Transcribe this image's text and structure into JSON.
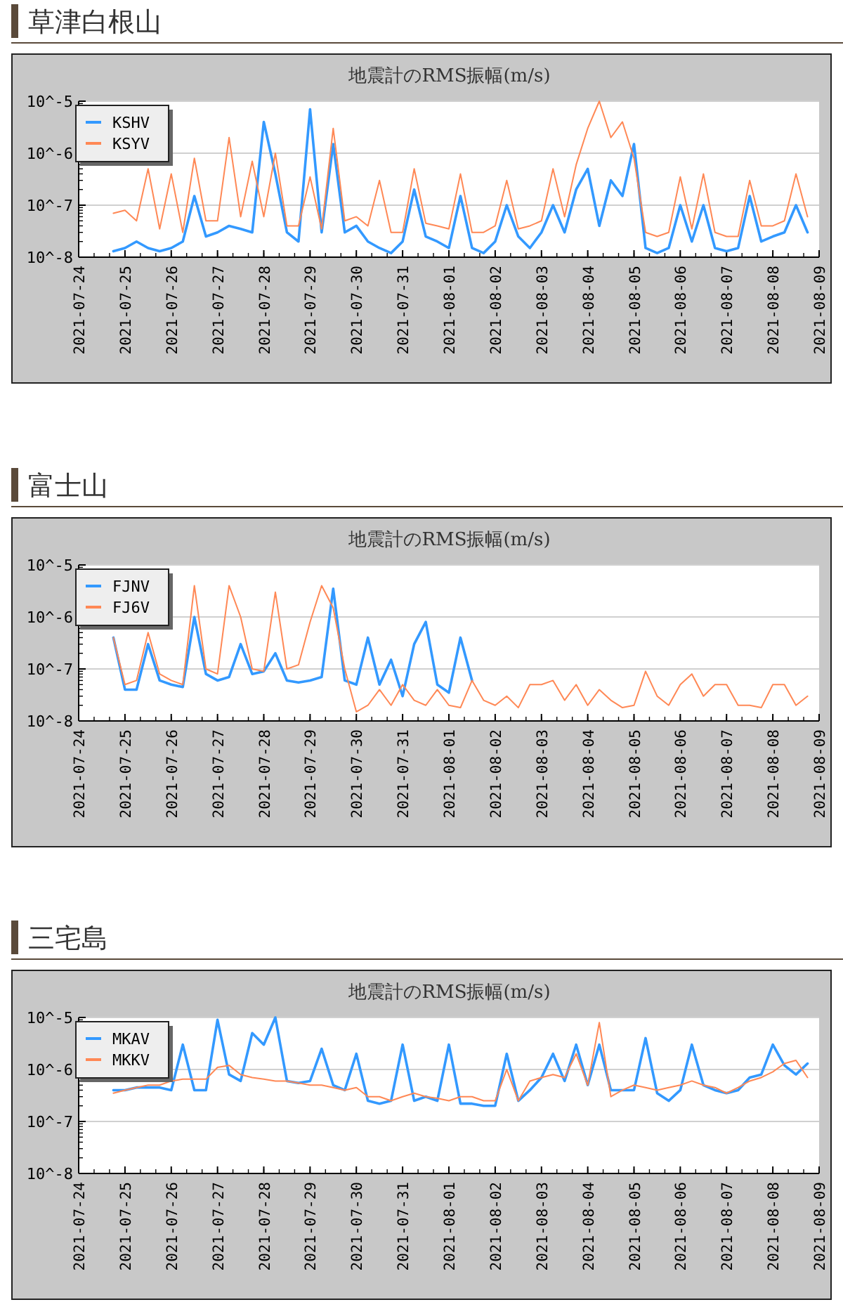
{
  "chart_data": [
    {
      "type": "line",
      "title": "草津白根山",
      "subtitle": "地震計のRMS振幅(m/s)",
      "log": "y",
      "grid": "y",
      "legend": "top left",
      "xlim": [
        "2021-07-24",
        "2021-08-09"
      ],
      "xticks": [
        "2021-07-24",
        "2021-07-25",
        "2021-07-26",
        "2021-07-27",
        "2021-07-28",
        "2021-07-29",
        "2021-07-30",
        "2021-07-31",
        "2021-08-01",
        "2021-08-02",
        "2021-08-03",
        "2021-08-04",
        "2021-08-05",
        "2021-08-06",
        "2021-08-07",
        "2021-08-08",
        "2021-08-09"
      ],
      "ylim": [
        1e-08,
        1e-05
      ],
      "yticks": [
        {
          "value": 1e-08,
          "label": "10^-8"
        },
        {
          "value": 1e-07,
          "label": "10^-7"
        },
        {
          "value": 1e-06,
          "label": "10^-6"
        },
        {
          "value": 1e-05,
          "label": "10^-5"
        }
      ],
      "x": [
        "2021-07-24T18:00",
        "2021-07-25T00:00",
        "2021-07-25T06:00",
        "2021-07-25T12:00",
        "2021-07-25T18:00",
        "2021-07-26T00:00",
        "2021-07-26T06:00",
        "2021-07-26T12:00",
        "2021-07-26T18:00",
        "2021-07-27T00:00",
        "2021-07-27T06:00",
        "2021-07-27T12:00",
        "2021-07-27T18:00",
        "2021-07-28T00:00",
        "2021-07-28T06:00",
        "2021-07-28T12:00",
        "2021-07-28T18:00",
        "2021-07-29T00:00",
        "2021-07-29T06:00",
        "2021-07-29T12:00",
        "2021-07-29T18:00",
        "2021-07-30T00:00",
        "2021-07-30T06:00",
        "2021-07-30T12:00",
        "2021-07-30T18:00",
        "2021-07-31T00:00",
        "2021-07-31T06:00",
        "2021-07-31T12:00",
        "2021-07-31T18:00",
        "2021-08-01T00:00",
        "2021-08-01T06:00",
        "2021-08-01T12:00",
        "2021-08-01T18:00",
        "2021-08-02T00:00",
        "2021-08-02T06:00",
        "2021-08-02T12:00",
        "2021-08-02T18:00",
        "2021-08-03T00:00",
        "2021-08-03T06:00",
        "2021-08-03T12:00",
        "2021-08-03T18:00",
        "2021-08-04T00:00",
        "2021-08-04T06:00",
        "2021-08-04T12:00",
        "2021-08-04T18:00",
        "2021-08-05T00:00",
        "2021-08-05T06:00",
        "2021-08-05T12:00",
        "2021-08-05T18:00",
        "2021-08-06T00:00",
        "2021-08-06T06:00",
        "2021-08-06T12:00",
        "2021-08-06T18:00",
        "2021-08-07T00:00",
        "2021-08-07T06:00",
        "2021-08-07T12:00",
        "2021-08-07T18:00",
        "2021-08-08T00:00",
        "2021-08-08T06:00",
        "2021-08-08T12:00",
        "2021-08-08T18:00"
      ],
      "series": [
        {
          "name": "KSHV",
          "color": "#3399ff",
          "values": [
            1.3e-08,
            1.5e-08,
            2e-08,
            1.5e-08,
            1.3e-08,
            1.5e-08,
            2e-08,
            1.5e-07,
            2.5e-08,
            3e-08,
            4e-08,
            3.5e-08,
            3e-08,
            4e-06,
            4e-07,
            3e-08,
            2e-08,
            7e-06,
            3e-08,
            1.5e-06,
            3e-08,
            4e-08,
            2e-08,
            1.5e-08,
            1.2e-08,
            2e-08,
            2e-07,
            2.5e-08,
            2e-08,
            1.5e-08,
            1.5e-07,
            1.5e-08,
            1.2e-08,
            2e-08,
            1e-07,
            2.5e-08,
            1.5e-08,
            3e-08,
            1e-07,
            3e-08,
            2e-07,
            5e-07,
            4e-08,
            3e-07,
            1.5e-07,
            1.5e-06,
            1.5e-08,
            1.2e-08,
            1.5e-08,
            1e-07,
            2e-08,
            1e-07,
            1.5e-08,
            1.3e-08,
            1.5e-08,
            1.5e-07,
            2e-08,
            2.5e-08,
            3e-08,
            1e-07,
            3e-08
          ]
        },
        {
          "name": "KSYV",
          "color": "#ff8855",
          "values": [
            7e-08,
            8e-08,
            5e-08,
            5e-07,
            3.5e-08,
            4e-07,
            3e-08,
            8e-07,
            5e-08,
            5e-08,
            2e-06,
            6e-08,
            7e-07,
            6e-08,
            1e-06,
            4e-08,
            4e-08,
            3.5e-07,
            3.5e-08,
            3e-06,
            5e-08,
            6e-08,
            4e-08,
            3e-07,
            3e-08,
            3e-08,
            5e-07,
            4.5e-08,
            4e-08,
            3.5e-08,
            4e-07,
            3e-08,
            3e-08,
            4e-08,
            3e-07,
            3.5e-08,
            4e-08,
            5e-08,
            5e-07,
            6e-08,
            6e-07,
            3e-06,
            1e-05,
            2e-06,
            4e-06,
            8e-07,
            3e-08,
            2.5e-08,
            3e-08,
            3.5e-07,
            3.5e-08,
            4e-07,
            3e-08,
            2.5e-08,
            2.5e-08,
            3e-07,
            4e-08,
            4e-08,
            5e-08,
            4e-07,
            6e-08
          ]
        }
      ]
    },
    {
      "type": "line",
      "title": "富士山",
      "subtitle": "地震計のRMS振幅(m/s)",
      "log": "y",
      "grid": "y",
      "legend": "top left",
      "xlim": [
        "2021-07-24",
        "2021-08-09"
      ],
      "xticks": [
        "2021-07-24",
        "2021-07-25",
        "2021-07-26",
        "2021-07-27",
        "2021-07-28",
        "2021-07-29",
        "2021-07-30",
        "2021-07-31",
        "2021-08-01",
        "2021-08-02",
        "2021-08-03",
        "2021-08-04",
        "2021-08-05",
        "2021-08-06",
        "2021-08-07",
        "2021-08-08",
        "2021-08-09"
      ],
      "ylim": [
        1e-08,
        1e-05
      ],
      "yticks": [
        {
          "value": 1e-08,
          "label": "10^-8"
        },
        {
          "value": 1e-07,
          "label": "10^-7"
        },
        {
          "value": 1e-06,
          "label": "10^-6"
        },
        {
          "value": 1e-05,
          "label": "10^-5"
        }
      ],
      "x": [
        "2021-07-24T18:00",
        "2021-07-25T00:00",
        "2021-07-25T06:00",
        "2021-07-25T12:00",
        "2021-07-25T18:00",
        "2021-07-26T00:00",
        "2021-07-26T06:00",
        "2021-07-26T12:00",
        "2021-07-26T18:00",
        "2021-07-27T00:00",
        "2021-07-27T06:00",
        "2021-07-27T12:00",
        "2021-07-27T18:00",
        "2021-07-28T00:00",
        "2021-07-28T06:00",
        "2021-07-28T12:00",
        "2021-07-28T18:00",
        "2021-07-29T00:00",
        "2021-07-29T06:00",
        "2021-07-29T12:00",
        "2021-07-29T18:00",
        "2021-07-30T00:00",
        "2021-07-30T06:00",
        "2021-07-30T12:00",
        "2021-07-30T18:00",
        "2021-07-31T00:00",
        "2021-07-31T06:00",
        "2021-07-31T12:00",
        "2021-07-31T18:00",
        "2021-08-01T00:00",
        "2021-08-01T06:00",
        "2021-08-01T12:00",
        "2021-08-01T18:00",
        "2021-08-02T00:00",
        "2021-08-02T06:00",
        "2021-08-02T12:00",
        "2021-08-02T18:00",
        "2021-08-03T00:00",
        "2021-08-03T06:00",
        "2021-08-03T12:00",
        "2021-08-03T18:00",
        "2021-08-04T00:00",
        "2021-08-04T06:00",
        "2021-08-04T12:00",
        "2021-08-04T18:00",
        "2021-08-05T00:00",
        "2021-08-05T06:00",
        "2021-08-05T12:00",
        "2021-08-05T18:00",
        "2021-08-06T00:00",
        "2021-08-06T06:00",
        "2021-08-06T12:00",
        "2021-08-06T18:00",
        "2021-08-07T00:00",
        "2021-08-07T06:00",
        "2021-08-07T12:00",
        "2021-08-07T18:00",
        "2021-08-08T00:00",
        "2021-08-08T06:00",
        "2021-08-08T12:00",
        "2021-08-08T18:00"
      ],
      "series": [
        {
          "name": "FJNV",
          "color": "#3399ff",
          "values": [
            4e-07,
            4e-08,
            4e-08,
            3e-07,
            6e-08,
            5e-08,
            4.5e-08,
            1e-06,
            8e-08,
            6e-08,
            7e-08,
            3e-07,
            8e-08,
            9e-08,
            2e-07,
            6e-08,
            5.5e-08,
            6e-08,
            7e-08,
            3.5e-06,
            6e-08,
            5e-08,
            4e-07,
            5e-08,
            1.5e-07,
            3e-08,
            3e-07,
            8e-07,
            5e-08,
            3.5e-08,
            4e-07,
            6e-08,
            null,
            null,
            null,
            null,
            null,
            null,
            null,
            null,
            null,
            null,
            null,
            null,
            null,
            null,
            null,
            null,
            null,
            null,
            null,
            null,
            null,
            null,
            null,
            null,
            null,
            null,
            null,
            null,
            null
          ]
        },
        {
          "name": "FJ6V",
          "color": "#ff8855",
          "values": [
            4e-07,
            5e-08,
            6e-08,
            5e-07,
            8e-08,
            6e-08,
            5e-08,
            4e-06,
            1e-07,
            8e-08,
            4e-06,
            1e-06,
            1e-07,
            9e-08,
            3e-06,
            1e-07,
            1.2e-07,
            8e-07,
            4e-06,
            1.5e-06,
            1e-07,
            1.5e-08,
            2e-08,
            4e-08,
            2e-08,
            5e-08,
            2.5e-08,
            2e-08,
            4e-08,
            2e-08,
            1.8e-08,
            6e-08,
            2.5e-08,
            2e-08,
            3e-08,
            1.8e-08,
            5e-08,
            5e-08,
            6e-08,
            2.5e-08,
            5e-08,
            2e-08,
            4e-08,
            2.5e-08,
            1.8e-08,
            2e-08,
            9e-08,
            3e-08,
            2e-08,
            5e-08,
            8e-08,
            3e-08,
            5e-08,
            5e-08,
            2e-08,
            2e-08,
            1.8e-08,
            5e-08,
            5e-08,
            2e-08,
            3e-08
          ]
        }
      ]
    },
    {
      "type": "line",
      "title": "三宅島",
      "subtitle": "地震計のRMS振幅(m/s)",
      "log": "y",
      "grid": "y",
      "legend": "top left",
      "xlim": [
        "2021-07-24",
        "2021-08-09"
      ],
      "xticks": [
        "2021-07-24",
        "2021-07-25",
        "2021-07-26",
        "2021-07-27",
        "2021-07-28",
        "2021-07-29",
        "2021-07-30",
        "2021-07-31",
        "2021-08-01",
        "2021-08-02",
        "2021-08-03",
        "2021-08-04",
        "2021-08-05",
        "2021-08-06",
        "2021-08-07",
        "2021-08-08",
        "2021-08-09"
      ],
      "ylim": [
        1e-08,
        1e-05
      ],
      "yticks": [
        {
          "value": 1e-08,
          "label": "10^-8"
        },
        {
          "value": 1e-07,
          "label": "10^-7"
        },
        {
          "value": 1e-06,
          "label": "10^-6"
        },
        {
          "value": 1e-05,
          "label": "10^-5"
        }
      ],
      "x": [
        "2021-07-24T18:00",
        "2021-07-25T00:00",
        "2021-07-25T06:00",
        "2021-07-25T12:00",
        "2021-07-25T18:00",
        "2021-07-26T00:00",
        "2021-07-26T06:00",
        "2021-07-26T12:00",
        "2021-07-26T18:00",
        "2021-07-27T00:00",
        "2021-07-27T06:00",
        "2021-07-27T12:00",
        "2021-07-27T18:00",
        "2021-07-28T00:00",
        "2021-07-28T06:00",
        "2021-07-28T12:00",
        "2021-07-28T18:00",
        "2021-07-29T00:00",
        "2021-07-29T06:00",
        "2021-07-29T12:00",
        "2021-07-29T18:00",
        "2021-07-30T00:00",
        "2021-07-30T06:00",
        "2021-07-30T12:00",
        "2021-07-30T18:00",
        "2021-07-31T00:00",
        "2021-07-31T06:00",
        "2021-07-31T12:00",
        "2021-07-31T18:00",
        "2021-08-01T00:00",
        "2021-08-01T06:00",
        "2021-08-01T12:00",
        "2021-08-01T18:00",
        "2021-08-02T00:00",
        "2021-08-02T06:00",
        "2021-08-02T12:00",
        "2021-08-02T18:00",
        "2021-08-03T00:00",
        "2021-08-03T06:00",
        "2021-08-03T12:00",
        "2021-08-03T18:00",
        "2021-08-04T00:00",
        "2021-08-04T06:00",
        "2021-08-04T12:00",
        "2021-08-04T18:00",
        "2021-08-05T00:00",
        "2021-08-05T06:00",
        "2021-08-05T12:00",
        "2021-08-05T18:00",
        "2021-08-06T00:00",
        "2021-08-06T06:00",
        "2021-08-06T12:00",
        "2021-08-06T18:00",
        "2021-08-07T00:00",
        "2021-08-07T06:00",
        "2021-08-07T12:00",
        "2021-08-07T18:00",
        "2021-08-08T00:00",
        "2021-08-08T06:00",
        "2021-08-08T12:00",
        "2021-08-08T18:00"
      ],
      "series": [
        {
          "name": "MKAV",
          "color": "#3399ff",
          "values": [
            4e-07,
            4e-07,
            4.5e-07,
            4.5e-07,
            4.5e-07,
            4e-07,
            3e-06,
            4e-07,
            4e-07,
            9e-06,
            8e-07,
            6e-07,
            5e-06,
            3e-06,
            1e-05,
            6e-07,
            5.5e-07,
            6e-07,
            2.5e-06,
            5e-07,
            4e-07,
            2e-06,
            2.5e-07,
            2.2e-07,
            2.5e-07,
            3e-06,
            2.5e-07,
            3e-07,
            2.5e-07,
            3e-06,
            2.2e-07,
            2.2e-07,
            2e-07,
            2e-07,
            2e-06,
            2.5e-07,
            4e-07,
            7e-07,
            2e-06,
            6e-07,
            3e-06,
            5e-07,
            3e-06,
            4e-07,
            4e-07,
            4e-07,
            4e-06,
            3.5e-07,
            2.5e-07,
            4e-07,
            3e-06,
            5e-07,
            4e-07,
            3.5e-07,
            4e-07,
            7e-07,
            8e-07,
            3e-06,
            1.2e-06,
            8e-07,
            1.3e-06
          ]
        },
        {
          "name": "MKKV",
          "color": "#ff8855",
          "values": [
            3.5e-07,
            4e-07,
            4.5e-07,
            5e-07,
            5e-07,
            6e-07,
            6.5e-07,
            6.5e-07,
            6.5e-07,
            1.1e-06,
            1.2e-06,
            8e-07,
            7e-07,
            6.5e-07,
            6e-07,
            6e-07,
            5.5e-07,
            5e-07,
            5e-07,
            4.5e-07,
            4e-07,
            4.5e-07,
            3e-07,
            3e-07,
            2.5e-07,
            3e-07,
            3.5e-07,
            3e-07,
            2.8e-07,
            2.5e-07,
            3e-07,
            3e-07,
            2.5e-07,
            2.5e-07,
            1e-06,
            2.5e-07,
            6e-07,
            7e-07,
            8e-07,
            7e-07,
            2e-06,
            5e-07,
            8e-06,
            3e-07,
            4e-07,
            5e-07,
            4.5e-07,
            4e-07,
            4.5e-07,
            5e-07,
            6e-07,
            5e-07,
            4.5e-07,
            3.5e-07,
            4.5e-07,
            6e-07,
            7e-07,
            9e-07,
            1.3e-06,
            1.5e-06,
            7e-07
          ]
        }
      ]
    }
  ]
}
